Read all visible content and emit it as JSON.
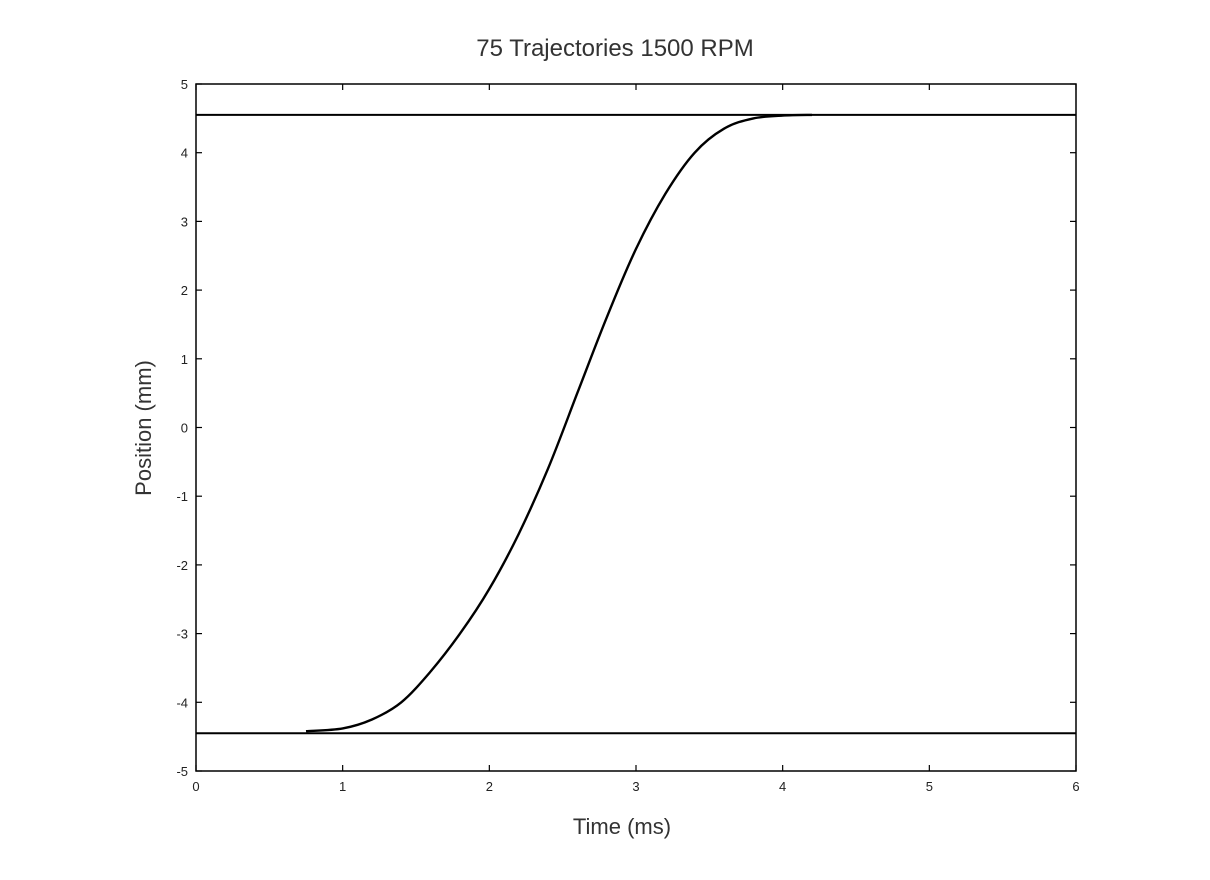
{
  "chart_data": {
    "type": "line",
    "title": "75  Trajectories  1500 RPM",
    "xlabel": "Time (ms)",
    "ylabel": "Position (mm)",
    "xlim": [
      0,
      6
    ],
    "ylim": [
      -5,
      5
    ],
    "x_ticks": [
      0,
      1,
      2,
      3,
      4,
      5,
      6
    ],
    "y_ticks": [
      5,
      4,
      3,
      2,
      1,
      0,
      -1,
      -2,
      -3,
      -4,
      -5
    ],
    "grid": false,
    "legend": "none",
    "line_color": "#000000",
    "reference_lines": [
      {
        "y": 4.55
      },
      {
        "y": -4.45
      }
    ],
    "series": [
      {
        "x": [
          0.75,
          1.0,
          1.2,
          1.4,
          1.6,
          1.8,
          2.0,
          2.2,
          2.4,
          2.6,
          2.8,
          3.0,
          3.2,
          3.4,
          3.6,
          3.8,
          4.0,
          4.2
        ],
        "y": [
          -4.42,
          -4.38,
          -4.25,
          -4.0,
          -3.55,
          -3.0,
          -2.35,
          -1.55,
          -0.6,
          0.5,
          1.6,
          2.6,
          3.4,
          4.0,
          4.35,
          4.5,
          4.54,
          4.55
        ]
      }
    ]
  }
}
